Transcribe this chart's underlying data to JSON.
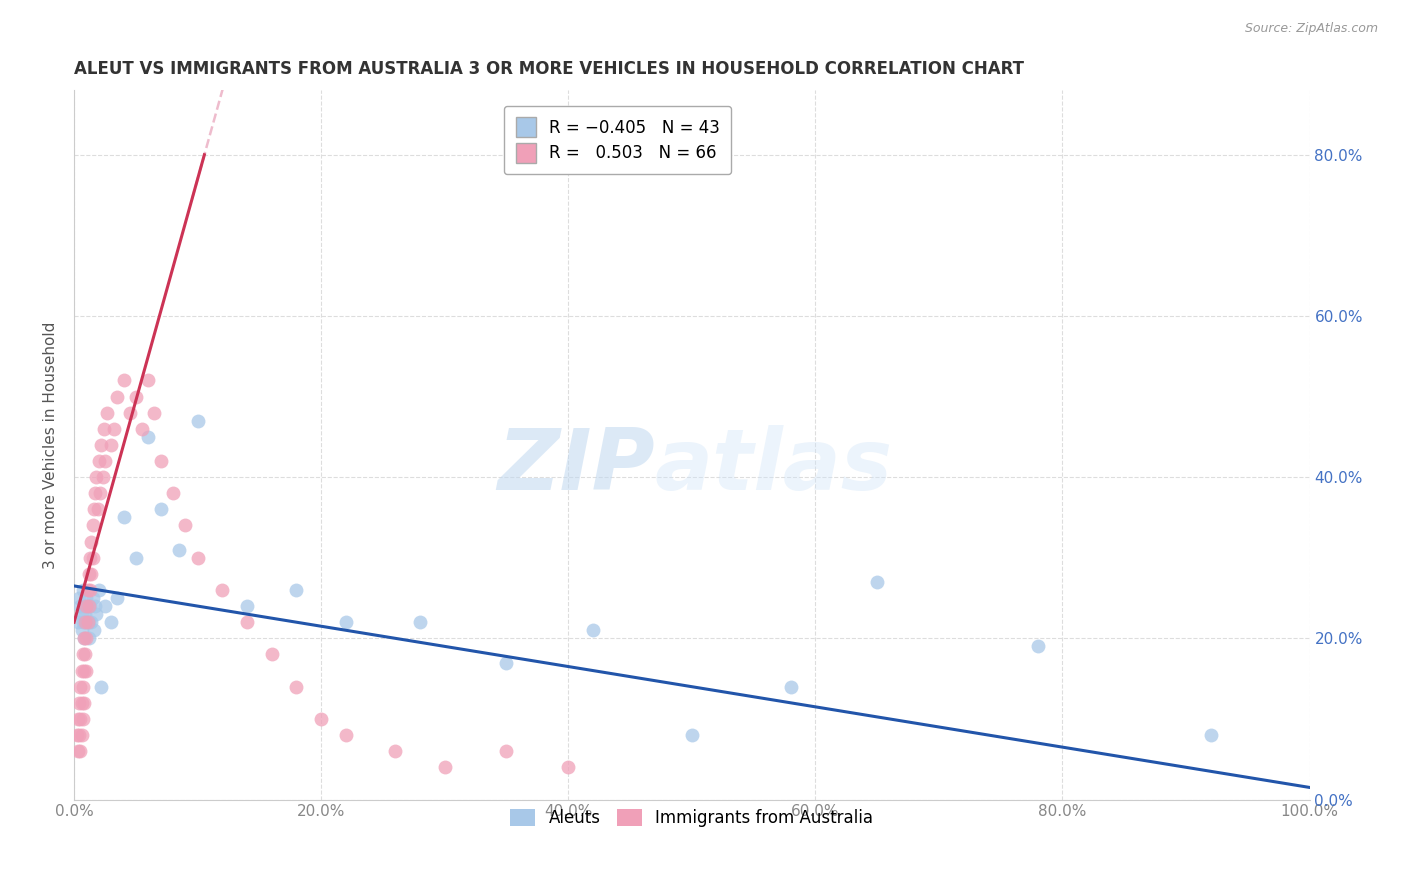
{
  "title": "ALEUT VS IMMIGRANTS FROM AUSTRALIA 3 OR MORE VEHICLES IN HOUSEHOLD CORRELATION CHART",
  "source": "Source: ZipAtlas.com",
  "xlabel_ticks": [
    "0.0%",
    "20.0%",
    "40.0%",
    "60.0%",
    "80.0%",
    "100.0%"
  ],
  "xlabel_tick_vals": [
    0.0,
    0.2,
    0.4,
    0.6,
    0.8,
    1.0
  ],
  "ylabel": "3 or more Vehicles in Household",
  "right_ytick_vals": [
    0.0,
    0.2,
    0.4,
    0.6,
    0.8
  ],
  "right_ytick_labels": [
    "0.0%",
    "20.0%",
    "40.0%",
    "60.0%",
    "80.0%"
  ],
  "xlim": [
    0.0,
    1.0
  ],
  "ylim": [
    0.0,
    0.88
  ],
  "watermark_zip": "ZIP",
  "watermark_atlas": "atlas",
  "legend_r1": "R = -0.405",
  "legend_n1": "N = 43",
  "legend_r2": "R =  0.503",
  "legend_n2": "N = 66",
  "color_blue": "#A8C8E8",
  "color_pink": "#F0A0B8",
  "color_blue_line": "#2255AA",
  "color_pink_line": "#CC3355",
  "color_pink_dashed": "#E8A0B8",
  "background": "#FFFFFF",
  "grid_color": "#DDDDDD",
  "aleuts_x": [
    0.003,
    0.004,
    0.005,
    0.006,
    0.006,
    0.007,
    0.007,
    0.008,
    0.008,
    0.009,
    0.01,
    0.01,
    0.011,
    0.012,
    0.012,
    0.013,
    0.014,
    0.015,
    0.016,
    0.017,
    0.018,
    0.02,
    0.022,
    0.025,
    0.03,
    0.035,
    0.04,
    0.05,
    0.06,
    0.07,
    0.085,
    0.1,
    0.14,
    0.18,
    0.22,
    0.28,
    0.35,
    0.42,
    0.5,
    0.58,
    0.65,
    0.78,
    0.92
  ],
  "aleuts_y": [
    0.22,
    0.25,
    0.24,
    0.23,
    0.21,
    0.26,
    0.22,
    0.24,
    0.2,
    0.23,
    0.25,
    0.22,
    0.24,
    0.2,
    0.22,
    0.24,
    0.22,
    0.25,
    0.21,
    0.24,
    0.23,
    0.26,
    0.14,
    0.24,
    0.22,
    0.25,
    0.35,
    0.3,
    0.45,
    0.36,
    0.31,
    0.47,
    0.24,
    0.26,
    0.22,
    0.22,
    0.17,
    0.21,
    0.08,
    0.14,
    0.27,
    0.19,
    0.08
  ],
  "aus_x": [
    0.002,
    0.003,
    0.003,
    0.004,
    0.004,
    0.005,
    0.005,
    0.005,
    0.006,
    0.006,
    0.006,
    0.007,
    0.007,
    0.007,
    0.008,
    0.008,
    0.008,
    0.009,
    0.009,
    0.01,
    0.01,
    0.01,
    0.011,
    0.011,
    0.012,
    0.012,
    0.013,
    0.013,
    0.014,
    0.014,
    0.015,
    0.015,
    0.016,
    0.017,
    0.018,
    0.019,
    0.02,
    0.021,
    0.022,
    0.023,
    0.024,
    0.025,
    0.027,
    0.03,
    0.032,
    0.035,
    0.04,
    0.045,
    0.05,
    0.055,
    0.06,
    0.065,
    0.07,
    0.08,
    0.09,
    0.1,
    0.12,
    0.14,
    0.16,
    0.18,
    0.2,
    0.22,
    0.26,
    0.3,
    0.35,
    0.4
  ],
  "aus_y": [
    0.08,
    0.1,
    0.06,
    0.12,
    0.08,
    0.14,
    0.1,
    0.06,
    0.16,
    0.12,
    0.08,
    0.18,
    0.14,
    0.1,
    0.2,
    0.16,
    0.12,
    0.22,
    0.18,
    0.24,
    0.2,
    0.16,
    0.26,
    0.22,
    0.28,
    0.24,
    0.3,
    0.26,
    0.32,
    0.28,
    0.34,
    0.3,
    0.36,
    0.38,
    0.4,
    0.36,
    0.42,
    0.38,
    0.44,
    0.4,
    0.46,
    0.42,
    0.48,
    0.44,
    0.46,
    0.5,
    0.52,
    0.48,
    0.5,
    0.46,
    0.52,
    0.48,
    0.42,
    0.38,
    0.34,
    0.3,
    0.26,
    0.22,
    0.18,
    0.14,
    0.1,
    0.08,
    0.06,
    0.04,
    0.06,
    0.04
  ],
  "aus_line_x0": 0.0,
  "aus_line_y0": 0.22,
  "aus_line_slope": 5.5,
  "aleut_line_x0": 0.0,
  "aleut_line_y0": 0.265,
  "aleut_line_slope": -0.25
}
